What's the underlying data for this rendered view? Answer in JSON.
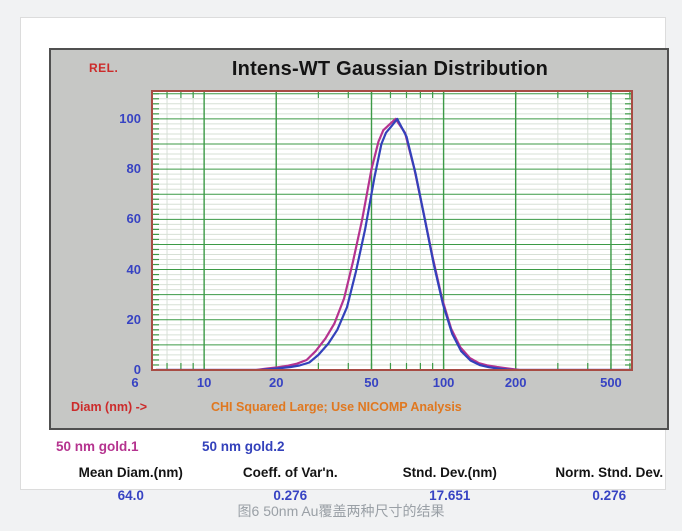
{
  "window": {
    "title": "Intens-WT Gaussian Distribution",
    "y_axis_corner_label": "REL.",
    "x_axis_label": "Diam (nm) ->",
    "status_message": "CHI Squared Large; Use NICOMP Analysis"
  },
  "legend": [
    {
      "label": "50 nm gold.1",
      "color": "#b5338f"
    },
    {
      "label": "50 nm gold.2",
      "color": "#3341bb"
    }
  ],
  "stats": [
    {
      "label": "Mean Diam.(nm)",
      "value": "64.0"
    },
    {
      "label": "Coeff. of Var'n.",
      "value": "0.276"
    },
    {
      "label": "Stnd. Dev.(nm)",
      "value": "17.651"
    },
    {
      "label": "Norm. Stnd. Dev.",
      "value": "0.276"
    }
  ],
  "caption": "图6 50nm Au覆盖两种尺寸的结果",
  "chart_data": {
    "type": "line",
    "title": "Intens-WT Gaussian Distribution",
    "xlabel": "Diam (nm)",
    "ylabel": "REL.",
    "x_scale": "log",
    "x_range": [
      6,
      618
    ],
    "y_range": [
      0,
      111.5
    ],
    "x_ticks_major": [
      10,
      20,
      50,
      100,
      200,
      500
    ],
    "x_ticks_minor": [
      7,
      8,
      9,
      30,
      40,
      60,
      70,
      80,
      90,
      300,
      400,
      600
    ],
    "x_tick_labels": [
      {
        "value": 6,
        "label": "6"
      },
      {
        "value": 10,
        "label": "10"
      },
      {
        "value": 20,
        "label": "20"
      },
      {
        "value": 50,
        "label": "50"
      },
      {
        "value": 100,
        "label": "100"
      },
      {
        "value": 200,
        "label": "200"
      },
      {
        "value": 500,
        "label": "500"
      }
    ],
    "y_grid_major_step": 10,
    "y_grid_minor_step": 2,
    "y_tick_labels": [
      {
        "value": 0,
        "label": "0"
      },
      {
        "value": 20,
        "label": "20"
      },
      {
        "value": 40,
        "label": "40"
      },
      {
        "value": 60,
        "label": "60"
      },
      {
        "value": 80,
        "label": "80"
      },
      {
        "value": 100,
        "label": "100"
      }
    ],
    "grid": true,
    "legend_position": "below-left",
    "colors": {
      "plot_background": "#ffffff",
      "plot_border": "#a84c44",
      "grid_major": "#3c9a46",
      "grid_minor": "#d7e0d6",
      "tick": "#3c9a46"
    },
    "series": [
      {
        "name": "50 nm gold.1",
        "color": "#b5338f",
        "peak_diameter_nm": 63,
        "points": [
          [
            6.3,
            0
          ],
          [
            16.5,
            0
          ],
          [
            18.4,
            0.6
          ],
          [
            20.4,
            1.1
          ],
          [
            22.4,
            1.7
          ],
          [
            24.4,
            2.5
          ],
          [
            26.8,
            4
          ],
          [
            29.2,
            7.5
          ],
          [
            32.1,
            12.5
          ],
          [
            35,
            18.5
          ],
          [
            38.4,
            28.5
          ],
          [
            41.8,
            43
          ],
          [
            45.7,
            60
          ],
          [
            50,
            80
          ],
          [
            53.5,
            91
          ],
          [
            56,
            95.5
          ],
          [
            59,
            97.5
          ],
          [
            63,
            100
          ],
          [
            69,
            94.5
          ],
          [
            75.5,
            80
          ],
          [
            82.5,
            62.5
          ],
          [
            90,
            45
          ],
          [
            98.5,
            28.5
          ],
          [
            107.5,
            16.5
          ],
          [
            117.5,
            9
          ],
          [
            128.5,
            4.8
          ],
          [
            140,
            2.8
          ],
          [
            153,
            1.8
          ],
          [
            167,
            1.2
          ],
          [
            182,
            0.7
          ],
          [
            196,
            0.3
          ],
          [
            208,
            0
          ],
          [
            618,
            0
          ]
        ]
      },
      {
        "name": "50 nm gold.2",
        "color": "#3341bb",
        "peak_diameter_nm": 64,
        "points": [
          [
            6.3,
            0
          ],
          [
            17,
            0
          ],
          [
            19,
            0.4
          ],
          [
            21,
            0.8
          ],
          [
            23,
            1.2
          ],
          [
            25,
            1.8
          ],
          [
            27.5,
            3
          ],
          [
            30,
            6
          ],
          [
            33,
            10.5
          ],
          [
            36,
            16
          ],
          [
            39.5,
            25
          ],
          [
            43,
            39
          ],
          [
            47,
            56
          ],
          [
            51.5,
            77
          ],
          [
            55,
            90
          ],
          [
            57.5,
            94.5
          ],
          [
            60.5,
            97
          ],
          [
            64,
            100
          ],
          [
            70,
            93
          ],
          [
            76.5,
            78
          ],
          [
            83.5,
            60
          ],
          [
            91,
            42
          ],
          [
            99.5,
            26
          ],
          [
            108.5,
            14.5
          ],
          [
            118.5,
            7.5
          ],
          [
            129.5,
            3.8
          ],
          [
            141.5,
            2
          ],
          [
            154.5,
            1.1
          ],
          [
            168.5,
            0.6
          ],
          [
            184,
            0.2
          ],
          [
            196,
            0
          ],
          [
            618,
            0
          ]
        ]
      }
    ]
  }
}
